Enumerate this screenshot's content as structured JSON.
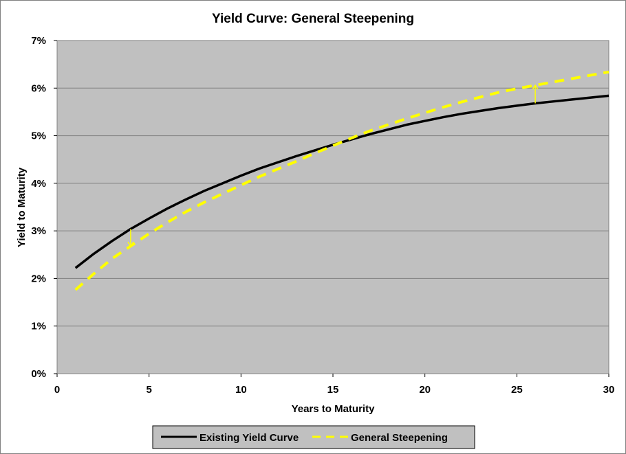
{
  "chart_data": {
    "type": "line",
    "title": "Yield Curve: General Steepening",
    "xlabel": "Years to Maturity",
    "ylabel": "Yield to Maturity",
    "xlim": [
      0,
      30
    ],
    "ylim": [
      0,
      7
    ],
    "x_ticks": [
      "0",
      "5",
      "10",
      "15",
      "20",
      "25",
      "30"
    ],
    "y_ticks": [
      "0%",
      "1%",
      "2%",
      "3%",
      "4%",
      "5%",
      "6%",
      "7%"
    ],
    "grid": "horizontal",
    "legend_position": "bottom",
    "plot_background": "#c0c0c0",
    "x": [
      1,
      2,
      3,
      4,
      5,
      6,
      7,
      8,
      9,
      10,
      11,
      12,
      13,
      14,
      15,
      16,
      17,
      18,
      19,
      20,
      21,
      22,
      23,
      24,
      25,
      26,
      27,
      28,
      29,
      30
    ],
    "series": [
      {
        "name": "Existing Yield Curve",
        "color": "#000000",
        "style": "solid",
        "values": [
          2.22,
          2.52,
          2.79,
          3.04,
          3.26,
          3.47,
          3.66,
          3.84,
          4.0,
          4.16,
          4.31,
          4.44,
          4.57,
          4.69,
          4.81,
          4.92,
          5.03,
          5.13,
          5.23,
          5.31,
          5.39,
          5.46,
          5.52,
          5.58,
          5.63,
          5.68,
          5.72,
          5.76,
          5.8,
          5.84
        ]
      },
      {
        "name": "General Steepening",
        "color": "#ffff00",
        "style": "dashed",
        "values": [
          1.76,
          2.1,
          2.42,
          2.68,
          2.94,
          3.18,
          3.4,
          3.6,
          3.78,
          3.96,
          4.14,
          4.3,
          4.46,
          4.63,
          4.79,
          4.95,
          5.1,
          5.23,
          5.36,
          5.48,
          5.6,
          5.71,
          5.81,
          5.91,
          5.99,
          6.06,
          6.13,
          6.2,
          6.27,
          6.34
        ]
      }
    ],
    "annotations": [
      {
        "type": "arrow",
        "x": 4,
        "from": 3.04,
        "to": 2.68,
        "color": "#ffff00"
      },
      {
        "type": "arrow",
        "x": 26,
        "from": 5.68,
        "to": 6.06,
        "color": "#ffff00"
      }
    ]
  }
}
